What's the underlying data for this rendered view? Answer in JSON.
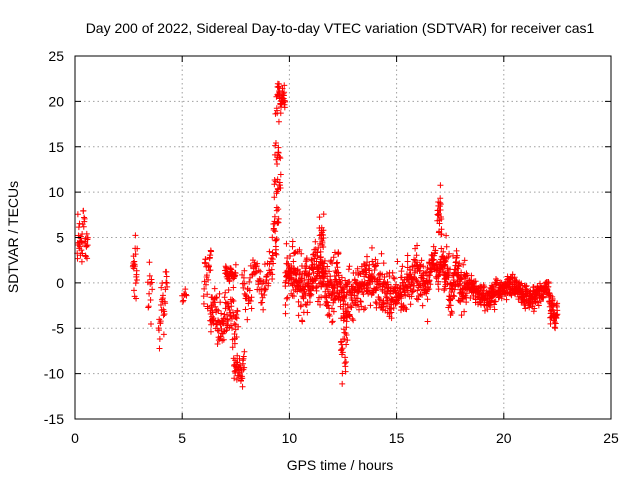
{
  "chart_data": {
    "type": "scatter",
    "title": "Day 200 of 2022, Sidereal Day-to-day VTEC variation (SDTVAR) for receiver cas1",
    "xlabel": "GPS time / hours",
    "ylabel": "SDTVAR / TECUs",
    "xlim": [
      0,
      25
    ],
    "ylim": [
      -15,
      25
    ],
    "xticks": [
      "0",
      "5",
      "10",
      "15",
      "20",
      "25"
    ],
    "yticks": [
      "-15",
      "-10",
      "-5",
      "0",
      "5",
      "10",
      "15",
      "20",
      "25"
    ],
    "grid": true,
    "marker": "plus",
    "color": "#ff0000",
    "segments": [
      {
        "x0": 0.1,
        "x1": 0.6,
        "n": 40,
        "base": 5.0,
        "amp": 2.5,
        "trend": 1.5,
        "noise": 1.2
      },
      {
        "x0": 2.7,
        "x1": 2.9,
        "n": 20,
        "base": 1.5,
        "amp": 2.0,
        "trend": 2.0,
        "noise": 1.5
      },
      {
        "x0": 3.4,
        "x1": 3.6,
        "n": 12,
        "base": -1.0,
        "amp": 2.5,
        "trend": 0.0,
        "noise": 1.5
      },
      {
        "x0": 3.9,
        "x1": 4.3,
        "n": 30,
        "base": -2.5,
        "amp": 3.0,
        "trend": 4.0,
        "noise": 1.0
      },
      {
        "x0": 5.0,
        "x1": 5.2,
        "n": 8,
        "base": -1.5,
        "amp": 0.3,
        "trend": 0.0,
        "noise": 0.3
      },
      {
        "x0": 6.0,
        "x1": 6.4,
        "n": 30,
        "base": 0.5,
        "amp": 4.0,
        "trend": 0.0,
        "noise": 1.5
      },
      {
        "x0": 6.3,
        "x1": 7.6,
        "n": 110,
        "base": -4.0,
        "amp": 1.5,
        "trend": 0.0,
        "noise": 1.4
      },
      {
        "x0": 7.0,
        "x1": 7.5,
        "n": 40,
        "base": 1.0,
        "amp": 0.6,
        "trend": 0.0,
        "noise": 0.3
      },
      {
        "x0": 7.4,
        "x1": 7.9,
        "n": 40,
        "base": -9.5,
        "amp": 1.0,
        "trend": 0.0,
        "noise": 0.8
      },
      {
        "x0": 7.8,
        "x1": 9.2,
        "n": 80,
        "base": 0.0,
        "amp": 2.0,
        "trend": 0.5,
        "noise": 1.2
      },
      {
        "x0": 9.2,
        "x1": 9.5,
        "n": 30,
        "base": 6.0,
        "amp": 4.0,
        "trend": 2.0,
        "noise": 1.0
      },
      {
        "x0": 9.4,
        "x1": 9.8,
        "n": 40,
        "base": 20.5,
        "amp": 1.0,
        "trend": 0.0,
        "noise": 0.8
      },
      {
        "x0": 9.3,
        "x1": 9.6,
        "n": 25,
        "base": 13.0,
        "amp": 3.0,
        "trend": 0.0,
        "noise": 2.0
      },
      {
        "x0": 9.8,
        "x1": 12.3,
        "n": 320,
        "base": 0.3,
        "amp": 1.5,
        "trend": 0.0,
        "noise": 1.5
      },
      {
        "x0": 11.4,
        "x1": 11.6,
        "n": 25,
        "base": 4.5,
        "amp": 2.5,
        "trend": 0.0,
        "noise": 1.0
      },
      {
        "x0": 12.4,
        "x1": 12.7,
        "n": 30,
        "base": -6.5,
        "amp": 3.0,
        "trend": 0.0,
        "noise": 1.5
      },
      {
        "x0": 12.3,
        "x1": 16.5,
        "n": 450,
        "base": -0.5,
        "amp": 1.8,
        "trend": 0.0,
        "noise": 1.3
      },
      {
        "x0": 16.5,
        "x1": 17.3,
        "n": 80,
        "base": 1.8,
        "amp": 1.2,
        "trend": 0.0,
        "noise": 0.8
      },
      {
        "x0": 16.9,
        "x1": 17.1,
        "n": 25,
        "base": 7.5,
        "amp": 2.0,
        "trend": 0.0,
        "noise": 0.8
      },
      {
        "x0": 17.2,
        "x1": 18.2,
        "n": 120,
        "base": 0.0,
        "amp": 2.5,
        "trend": 0.0,
        "noise": 1.5
      },
      {
        "x0": 18.2,
        "x1": 22.1,
        "n": 420,
        "base": -1.0,
        "amp": 1.0,
        "trend": 0.0,
        "noise": 0.6
      },
      {
        "x0": 22.1,
        "x1": 22.5,
        "n": 50,
        "base": -3.0,
        "amp": 1.0,
        "trend": -2.0,
        "noise": 0.7
      }
    ]
  }
}
